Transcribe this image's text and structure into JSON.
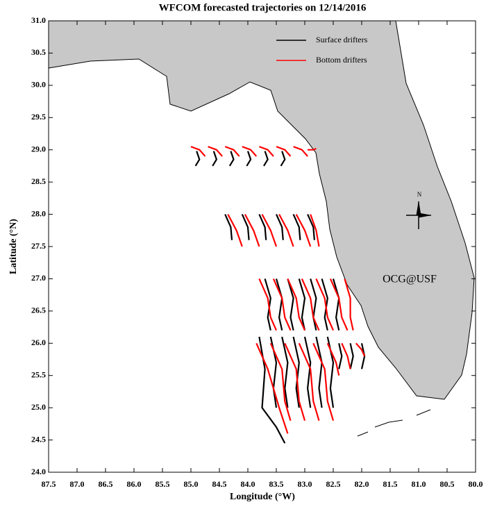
{
  "chart_data": {
    "type": "trajectory",
    "title": "WFCOM forecasted trajectories on 12/14/2016",
    "x_label": "Longitude (°W)",
    "y_label": "Latitude (°N)",
    "annotation": "OCG@USF",
    "annotation_color": "#ff0000",
    "compass_label": "N",
    "legend": "upper right",
    "xlim": [
      87.5,
      80.0
    ],
    "ylim": [
      24.0,
      31.0
    ],
    "xticks": [
      87.5,
      {
        "value": 87,
        "label": "87.0"
      },
      86.5,
      {
        "value": 86,
        "label": "86.0"
      },
      85.5,
      {
        "value": 85,
        "label": "85.0"
      },
      84.5,
      {
        "value": 84,
        "label": "84.0"
      },
      83.5,
      {
        "value": 83,
        "label": "83.0"
      },
      82.5,
      {
        "value": 82,
        "label": "82.0"
      },
      81.5,
      {
        "value": 81,
        "label": "81.0"
      },
      80.5,
      {
        "value": 80,
        "label": "80.0"
      }
    ],
    "yticks": [
      {
        "value": 24,
        "label": "24.0"
      },
      24.5,
      {
        "value": 25,
        "label": "25.0"
      },
      25.5,
      {
        "value": 26,
        "label": "26.0"
      },
      26.5,
      {
        "value": 27,
        "label": "27.0"
      },
      27.5,
      {
        "value": 28,
        "label": "28.0"
      },
      28.5,
      {
        "value": 29,
        "label": "29.0"
      },
      29.5,
      {
        "value": 30,
        "label": "30.0"
      },
      30.5,
      {
        "value": 31,
        "label": "31.0"
      }
    ],
    "series": [
      {
        "name": "Surface drifters",
        "color": "#000000",
        "x": [
          84.9,
          84.85,
          84.92,
          null,
          84.6,
          84.55,
          84.62,
          null,
          84.3,
          84.25,
          84.32,
          null,
          84.0,
          83.95,
          84.02,
          null,
          83.7,
          83.65,
          83.72,
          null,
          83.4,
          83.35,
          83.42,
          null,
          84.4,
          84.3,
          84.28,
          null,
          84.1,
          84.0,
          83.98,
          null,
          83.8,
          83.7,
          83.68,
          null,
          83.5,
          83.4,
          83.38,
          null,
          83.2,
          83.1,
          83.08,
          null,
          82.95,
          82.85,
          82.83,
          null,
          83.7,
          83.6,
          83.65,
          83.6,
          null,
          83.5,
          83.4,
          83.45,
          83.4,
          null,
          83.3,
          83.2,
          83.25,
          83.2,
          null,
          83.1,
          83.0,
          83.05,
          83.0,
          null,
          82.9,
          82.8,
          82.85,
          82.8,
          null,
          82.7,
          82.6,
          82.65,
          82.6,
          null,
          82.5,
          82.4,
          82.45,
          82.4,
          null,
          83.8,
          83.7,
          83.75,
          83.5,
          83.35,
          null,
          83.6,
          83.5,
          83.55,
          83.5,
          null,
          83.4,
          83.3,
          83.35,
          83.3,
          null,
          83.2,
          83.1,
          83.15,
          83.1,
          null,
          83.0,
          82.9,
          82.95,
          82.9,
          null,
          82.8,
          82.7,
          82.75,
          82.7,
          null,
          82.6,
          82.5,
          82.55,
          82.5,
          null,
          82.4,
          82.35,
          82.4,
          null,
          82.2,
          82.15,
          82.2,
          null,
          82.0,
          81.95,
          82.0
        ],
        "y": [
          28.98,
          28.85,
          28.75,
          null,
          28.98,
          28.85,
          28.75,
          null,
          28.98,
          28.85,
          28.75,
          null,
          28.98,
          28.85,
          28.75,
          null,
          28.98,
          28.85,
          28.75,
          null,
          28.98,
          28.85,
          28.75,
          null,
          28.0,
          27.8,
          27.6,
          null,
          28.0,
          27.8,
          27.6,
          null,
          28.0,
          27.8,
          27.6,
          null,
          28.0,
          27.8,
          27.6,
          null,
          28.0,
          27.8,
          27.6,
          null,
          28.0,
          27.8,
          27.6,
          null,
          27.0,
          26.7,
          26.4,
          26.2,
          null,
          27.0,
          26.7,
          26.4,
          26.2,
          null,
          27.0,
          26.7,
          26.4,
          26.2,
          null,
          27.0,
          26.7,
          26.4,
          26.2,
          null,
          27.0,
          26.7,
          26.4,
          26.2,
          null,
          27.0,
          26.7,
          26.4,
          26.2,
          null,
          27.0,
          26.7,
          26.4,
          26.2,
          null,
          26.1,
          25.6,
          25.0,
          24.7,
          24.45,
          null,
          26.1,
          25.7,
          25.3,
          25.0,
          null,
          26.1,
          25.7,
          25.3,
          25.0,
          null,
          26.1,
          25.7,
          25.3,
          25.0,
          null,
          26.1,
          25.7,
          25.3,
          25.0,
          null,
          26.1,
          25.7,
          25.3,
          25.0,
          null,
          26.1,
          25.7,
          25.3,
          25.0,
          null,
          26.0,
          25.8,
          25.6,
          null,
          26.0,
          25.8,
          25.6,
          null,
          26.0,
          25.8,
          25.6
        ]
      },
      {
        "name": "Bottom drifters",
        "color": "#ff0000",
        "x": [
          85.0,
          84.85,
          84.75,
          null,
          84.7,
          84.55,
          84.45,
          null,
          84.4,
          84.25,
          84.15,
          null,
          84.1,
          83.95,
          83.85,
          null,
          83.8,
          83.65,
          83.55,
          null,
          83.5,
          83.35,
          83.25,
          null,
          83.2,
          83.05,
          82.95,
          null,
          82.95,
          82.85,
          82.8,
          null,
          84.35,
          84.2,
          84.1,
          null,
          84.05,
          83.9,
          83.8,
          null,
          83.75,
          83.6,
          83.5,
          null,
          83.45,
          83.3,
          83.2,
          null,
          83.15,
          83.0,
          82.9,
          null,
          82.9,
          82.8,
          82.75,
          null,
          83.8,
          83.65,
          83.6,
          83.5,
          null,
          83.55,
          83.4,
          83.35,
          83.25,
          null,
          83.3,
          83.15,
          83.1,
          83.0,
          null,
          83.05,
          82.9,
          82.85,
          82.75,
          null,
          82.8,
          82.65,
          82.6,
          82.5,
          null,
          82.55,
          82.4,
          82.35,
          82.25,
          null,
          82.3,
          82.2,
          82.2,
          82.15,
          null,
          83.85,
          83.65,
          83.45,
          83.3,
          null,
          83.6,
          83.4,
          83.35,
          83.25,
          null,
          83.35,
          83.15,
          83.1,
          83.0,
          null,
          83.1,
          82.9,
          82.85,
          82.75,
          null,
          82.85,
          82.65,
          82.6,
          82.5,
          null,
          82.6,
          82.45,
          82.4,
          null,
          82.35,
          82.25,
          82.2,
          null,
          82.1,
          82.0,
          81.95
        ],
        "y": [
          29.05,
          29.0,
          28.9,
          null,
          29.05,
          29.0,
          28.9,
          null,
          29.05,
          29.0,
          28.9,
          null,
          29.05,
          29.0,
          28.9,
          null,
          29.05,
          29.0,
          28.9,
          null,
          29.05,
          29.0,
          28.9,
          null,
          29.05,
          29.0,
          28.9,
          null,
          29.0,
          29.0,
          29.02,
          null,
          28.0,
          27.75,
          27.5,
          null,
          28.0,
          27.75,
          27.5,
          null,
          28.0,
          27.75,
          27.5,
          null,
          28.0,
          27.75,
          27.5,
          null,
          28.0,
          27.75,
          27.5,
          null,
          28.0,
          27.75,
          27.5,
          null,
          27.0,
          26.7,
          26.4,
          26.2,
          null,
          27.0,
          26.7,
          26.4,
          26.2,
          null,
          27.0,
          26.7,
          26.4,
          26.2,
          null,
          27.0,
          26.7,
          26.4,
          26.2,
          null,
          27.0,
          26.7,
          26.4,
          26.2,
          null,
          27.0,
          26.7,
          26.4,
          26.2,
          null,
          27.0,
          26.7,
          26.4,
          26.2,
          null,
          26.0,
          25.6,
          25.0,
          24.6,
          null,
          26.0,
          25.6,
          25.1,
          24.8,
          null,
          26.0,
          25.6,
          25.1,
          24.8,
          null,
          26.0,
          25.6,
          25.1,
          24.8,
          null,
          26.0,
          25.6,
          25.1,
          24.8,
          null,
          26.0,
          25.7,
          25.5,
          null,
          26.0,
          25.8,
          25.6,
          null,
          26.0,
          25.9,
          25.8
        ]
      }
    ]
  }
}
